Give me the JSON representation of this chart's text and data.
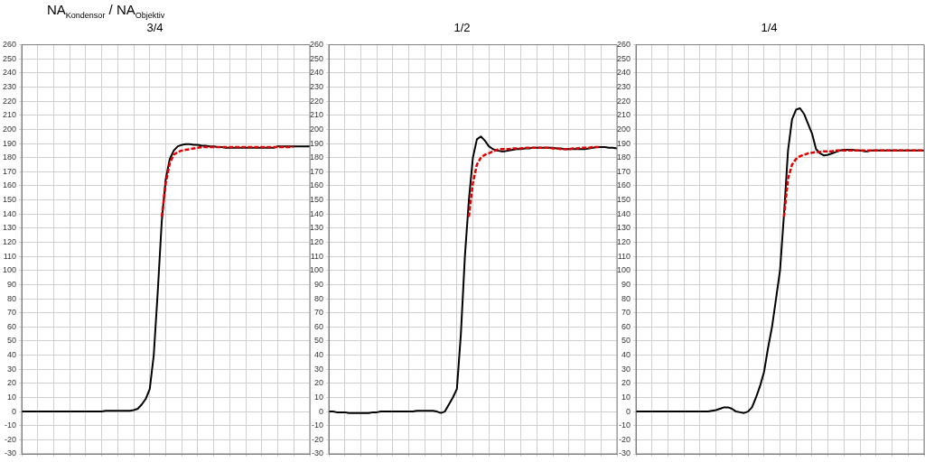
{
  "chart_data": [
    {
      "type": "line",
      "title": "3/4",
      "annotations": [
        "NA$_{Kondensor}$ / NA$_{Objektiv}$"
      ],
      "categories": [
        null,
        null,
        null,
        null,
        null,
        null,
        null,
        null,
        null,
        null,
        null,
        null,
        null,
        null,
        null,
        null,
        null,
        null,
        null,
        null,
        null,
        null,
        null,
        null,
        null,
        null,
        null,
        null,
        null,
        null,
        null,
        null,
        null,
        null,
        null,
        null,
        null,
        null,
        null,
        null,
        null,
        null,
        null,
        null,
        null,
        null,
        null,
        null,
        null,
        null,
        null,
        null,
        null,
        null,
        null,
        null,
        null,
        null,
        null,
        null,
        null,
        null,
        null,
        null,
        null,
        null,
        null,
        null,
        null,
        null,
        null,
        null,
        null
      ],
      "ylim": [
        -30,
        260
      ],
      "yticks": [
        -30,
        -20,
        -10,
        0,
        10,
        20,
        30,
        40,
        50,
        60,
        70,
        80,
        90,
        100,
        110,
        120,
        130,
        140,
        150,
        160,
        170,
        180,
        190,
        200,
        210,
        220,
        230,
        240,
        250,
        260
      ],
      "grid": true,
      "tick_labels": "y",
      "marker": "none",
      "series": [
        {
          "color": "#000000",
          "line_style": "solid",
          "values": [
            0,
            0,
            0,
            0,
            0,
            0,
            0,
            0,
            0,
            0,
            0,
            0,
            0,
            0,
            0,
            0,
            0,
            0,
            0,
            0,
            0,
            0.5,
            0.5,
            0.5,
            0.5,
            0.5,
            0.5,
            0.5,
            1,
            2,
            5,
            9,
            16,
            40,
            85,
            135,
            165,
            179,
            185,
            188,
            189,
            189.5,
            189.5,
            189,
            189,
            188.5,
            188.5,
            188,
            188,
            187.5,
            187.5,
            187,
            187,
            187,
            187,
            187,
            187,
            187,
            187,
            187,
            187,
            187,
            187,
            187,
            188,
            188,
            188,
            188,
            188,
            188,
            188,
            188,
            188
          ]
        },
        {
          "color": "#e00000",
          "line_style": "dashed",
          "values": [
            null,
            null,
            null,
            null,
            null,
            null,
            null,
            null,
            null,
            null,
            null,
            null,
            null,
            null,
            null,
            null,
            null,
            null,
            null,
            null,
            null,
            null,
            null,
            null,
            null,
            null,
            null,
            null,
            null,
            null,
            null,
            null,
            null,
            null,
            null,
            138,
            162,
            176,
            182,
            184,
            185,
            185.5,
            186,
            186.5,
            187,
            187.5,
            187.5,
            187.5,
            187.5,
            187.5,
            187.5,
            187.5,
            187.5,
            187.5,
            187.5,
            187.5,
            187.5,
            187.5,
            187.5,
            187.5,
            187.5,
            187.5,
            187.5,
            187.5,
            187.5,
            187.5,
            187.5,
            187.5,
            188,
            null,
            null,
            null,
            null
          ]
        }
      ]
    },
    {
      "type": "line",
      "title": "1/2",
      "categories": [
        null,
        null,
        null,
        null,
        null,
        null,
        null,
        null,
        null,
        null,
        null,
        null,
        null,
        null,
        null,
        null,
        null,
        null,
        null,
        null,
        null,
        null,
        null,
        null,
        null,
        null,
        null,
        null,
        null,
        null,
        null,
        null,
        null,
        null,
        null,
        null,
        null,
        null,
        null,
        null,
        null,
        null,
        null,
        null,
        null,
        null,
        null,
        null,
        null,
        null,
        null,
        null,
        null,
        null,
        null,
        null,
        null,
        null,
        null,
        null,
        null,
        null,
        null,
        null,
        null,
        null,
        null,
        null,
        null,
        null,
        null,
        null,
        null
      ],
      "ylim": [
        -30,
        260
      ],
      "yticks": [
        -30,
        -20,
        -10,
        0,
        10,
        20,
        30,
        40,
        50,
        60,
        70,
        80,
        90,
        100,
        110,
        120,
        130,
        140,
        150,
        160,
        170,
        180,
        190,
        200,
        210,
        220,
        230,
        240,
        250,
        260
      ],
      "grid": true,
      "tick_labels": "y",
      "marker": "none",
      "series": [
        {
          "color": "#000000",
          "line_style": "solid",
          "values": [
            0,
            0,
            -0.5,
            -0.5,
            -0.5,
            -1,
            -1,
            -1,
            -1,
            -1,
            -1,
            -0.5,
            -0.5,
            0,
            0,
            0,
            0,
            0,
            0,
            0,
            0,
            0,
            0.5,
            0.5,
            0.5,
            0.5,
            0.5,
            0,
            -1,
            0,
            5,
            10,
            16,
            55,
            110,
            150,
            180,
            193,
            195,
            192,
            188,
            186,
            185,
            184.5,
            184.5,
            185,
            185.5,
            186,
            186,
            186.5,
            186.5,
            187,
            187,
            187,
            187,
            187,
            187,
            186.5,
            186.5,
            186,
            186,
            186,
            186,
            186,
            186,
            186.5,
            187,
            187.5,
            187.5,
            187.5,
            187,
            187,
            186.5
          ]
        },
        {
          "color": "#e00000",
          "line_style": "dashed",
          "values": [
            null,
            null,
            null,
            null,
            null,
            null,
            null,
            null,
            null,
            null,
            null,
            null,
            null,
            null,
            null,
            null,
            null,
            null,
            null,
            null,
            null,
            null,
            null,
            null,
            null,
            null,
            null,
            null,
            null,
            null,
            null,
            null,
            null,
            null,
            null,
            138,
            162,
            175,
            180,
            182,
            183,
            184.5,
            185.5,
            186,
            186,
            186,
            186.5,
            186.5,
            186.5,
            187,
            187,
            187,
            187,
            187,
            187,
            187,
            186.5,
            186.5,
            186,
            186,
            186,
            186.5,
            186.5,
            187,
            187,
            187,
            187.5,
            187.5,
            187.5,
            null,
            null,
            null,
            null
          ]
        }
      ]
    },
    {
      "type": "line",
      "title": "1/4",
      "categories": [
        null,
        null,
        null,
        null,
        null,
        null,
        null,
        null,
        null,
        null,
        null,
        null,
        null,
        null,
        null,
        null,
        null,
        null,
        null,
        null,
        null,
        null,
        null,
        null,
        null,
        null,
        null,
        null,
        null,
        null,
        null,
        null,
        null,
        null,
        null,
        null,
        null,
        null,
        null,
        null,
        null,
        null,
        null,
        null,
        null,
        null,
        null,
        null,
        null,
        null,
        null,
        null,
        null,
        null,
        null,
        null,
        null,
        null,
        null,
        null,
        null,
        null,
        null,
        null,
        null,
        null,
        null,
        null,
        null,
        null,
        null,
        null,
        null
      ],
      "ylim": [
        -30,
        260
      ],
      "yticks": [
        -30,
        -20,
        -10,
        0,
        10,
        20,
        30,
        40,
        50,
        60,
        70,
        80,
        90,
        100,
        110,
        120,
        130,
        140,
        150,
        160,
        170,
        180,
        190,
        200,
        210,
        220,
        230,
        240,
        250,
        260
      ],
      "grid": true,
      "tick_labels": "y",
      "marker": "none",
      "series": [
        {
          "color": "#000000",
          "line_style": "solid",
          "values": [
            0,
            0,
            0,
            0,
            0,
            0,
            0,
            0,
            0,
            0,
            0,
            0,
            0,
            0,
            0,
            0,
            0,
            0,
            0,
            0.5,
            1,
            2,
            3,
            3,
            2,
            0,
            -0.5,
            -1,
            0,
            3,
            10,
            18,
            28,
            45,
            60,
            80,
            100,
            140,
            185,
            207,
            214,
            215,
            211,
            204,
            197,
            186,
            183,
            181.5,
            182,
            183,
            184,
            185,
            185.5,
            185.5,
            185.5,
            185,
            185,
            184.5,
            184.5,
            185,
            185,
            185,
            185,
            185,
            185,
            185,
            185,
            185,
            185,
            185,
            185,
            185,
            185
          ]
        },
        {
          "color": "#e00000",
          "line_style": "dashed",
          "values": [
            null,
            null,
            null,
            null,
            null,
            null,
            null,
            null,
            null,
            null,
            null,
            null,
            null,
            null,
            null,
            null,
            null,
            null,
            null,
            null,
            null,
            null,
            null,
            null,
            null,
            null,
            null,
            null,
            null,
            null,
            null,
            null,
            null,
            null,
            null,
            null,
            null,
            138,
            165,
            175,
            179,
            181,
            182,
            183,
            183.5,
            184,
            184,
            184.5,
            184.5,
            184.5,
            185,
            185,
            185,
            185,
            185,
            185,
            185,
            185,
            185,
            185,
            185,
            185,
            185,
            185,
            185,
            185,
            185,
            185,
            185,
            185,
            185,
            185,
            185
          ]
        }
      ]
    }
  ]
}
